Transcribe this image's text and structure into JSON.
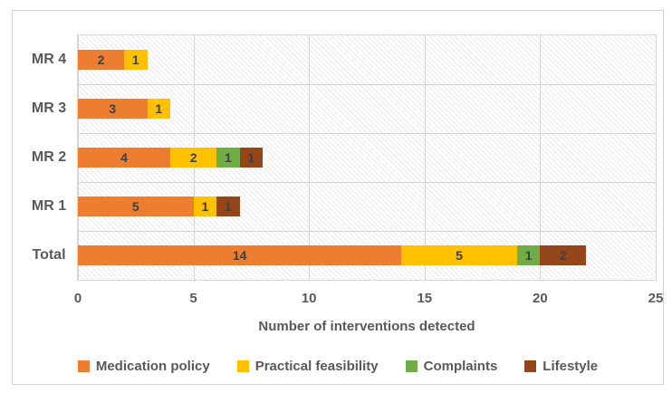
{
  "chart_data": {
    "type": "bar",
    "orientation": "horizontal",
    "stacked": true,
    "categories": [
      "MR 4",
      "MR 3",
      "MR 2",
      "MR 1",
      "Total"
    ],
    "series": [
      {
        "name": "Medication policy",
        "color": "#ED7D31",
        "values": [
          2,
          3,
          4,
          5,
          14
        ]
      },
      {
        "name": "Practical feasibility",
        "color": "#FFC000",
        "values": [
          1,
          1,
          2,
          1,
          5
        ]
      },
      {
        "name": "Complaints",
        "color": "#70AD47",
        "values": [
          0,
          0,
          1,
          0,
          1
        ]
      },
      {
        "name": "Lifestyle",
        "color": "#94451A",
        "values": [
          0,
          0,
          1,
          1,
          2
        ]
      }
    ],
    "xlabel": "Number of interventions detected",
    "ylabel": "",
    "title": "",
    "xlim": [
      0,
      25
    ],
    "xticks": [
      0,
      5,
      10,
      15,
      20,
      25
    ],
    "grid": true,
    "plot_fill_pattern": "diagonal-hatch",
    "legend_position": "bottom",
    "data_labels": true,
    "data_label_color": "#3f3f3f",
    "axis_text_color": "#595959",
    "gridline_color": "#d4d4d4"
  }
}
